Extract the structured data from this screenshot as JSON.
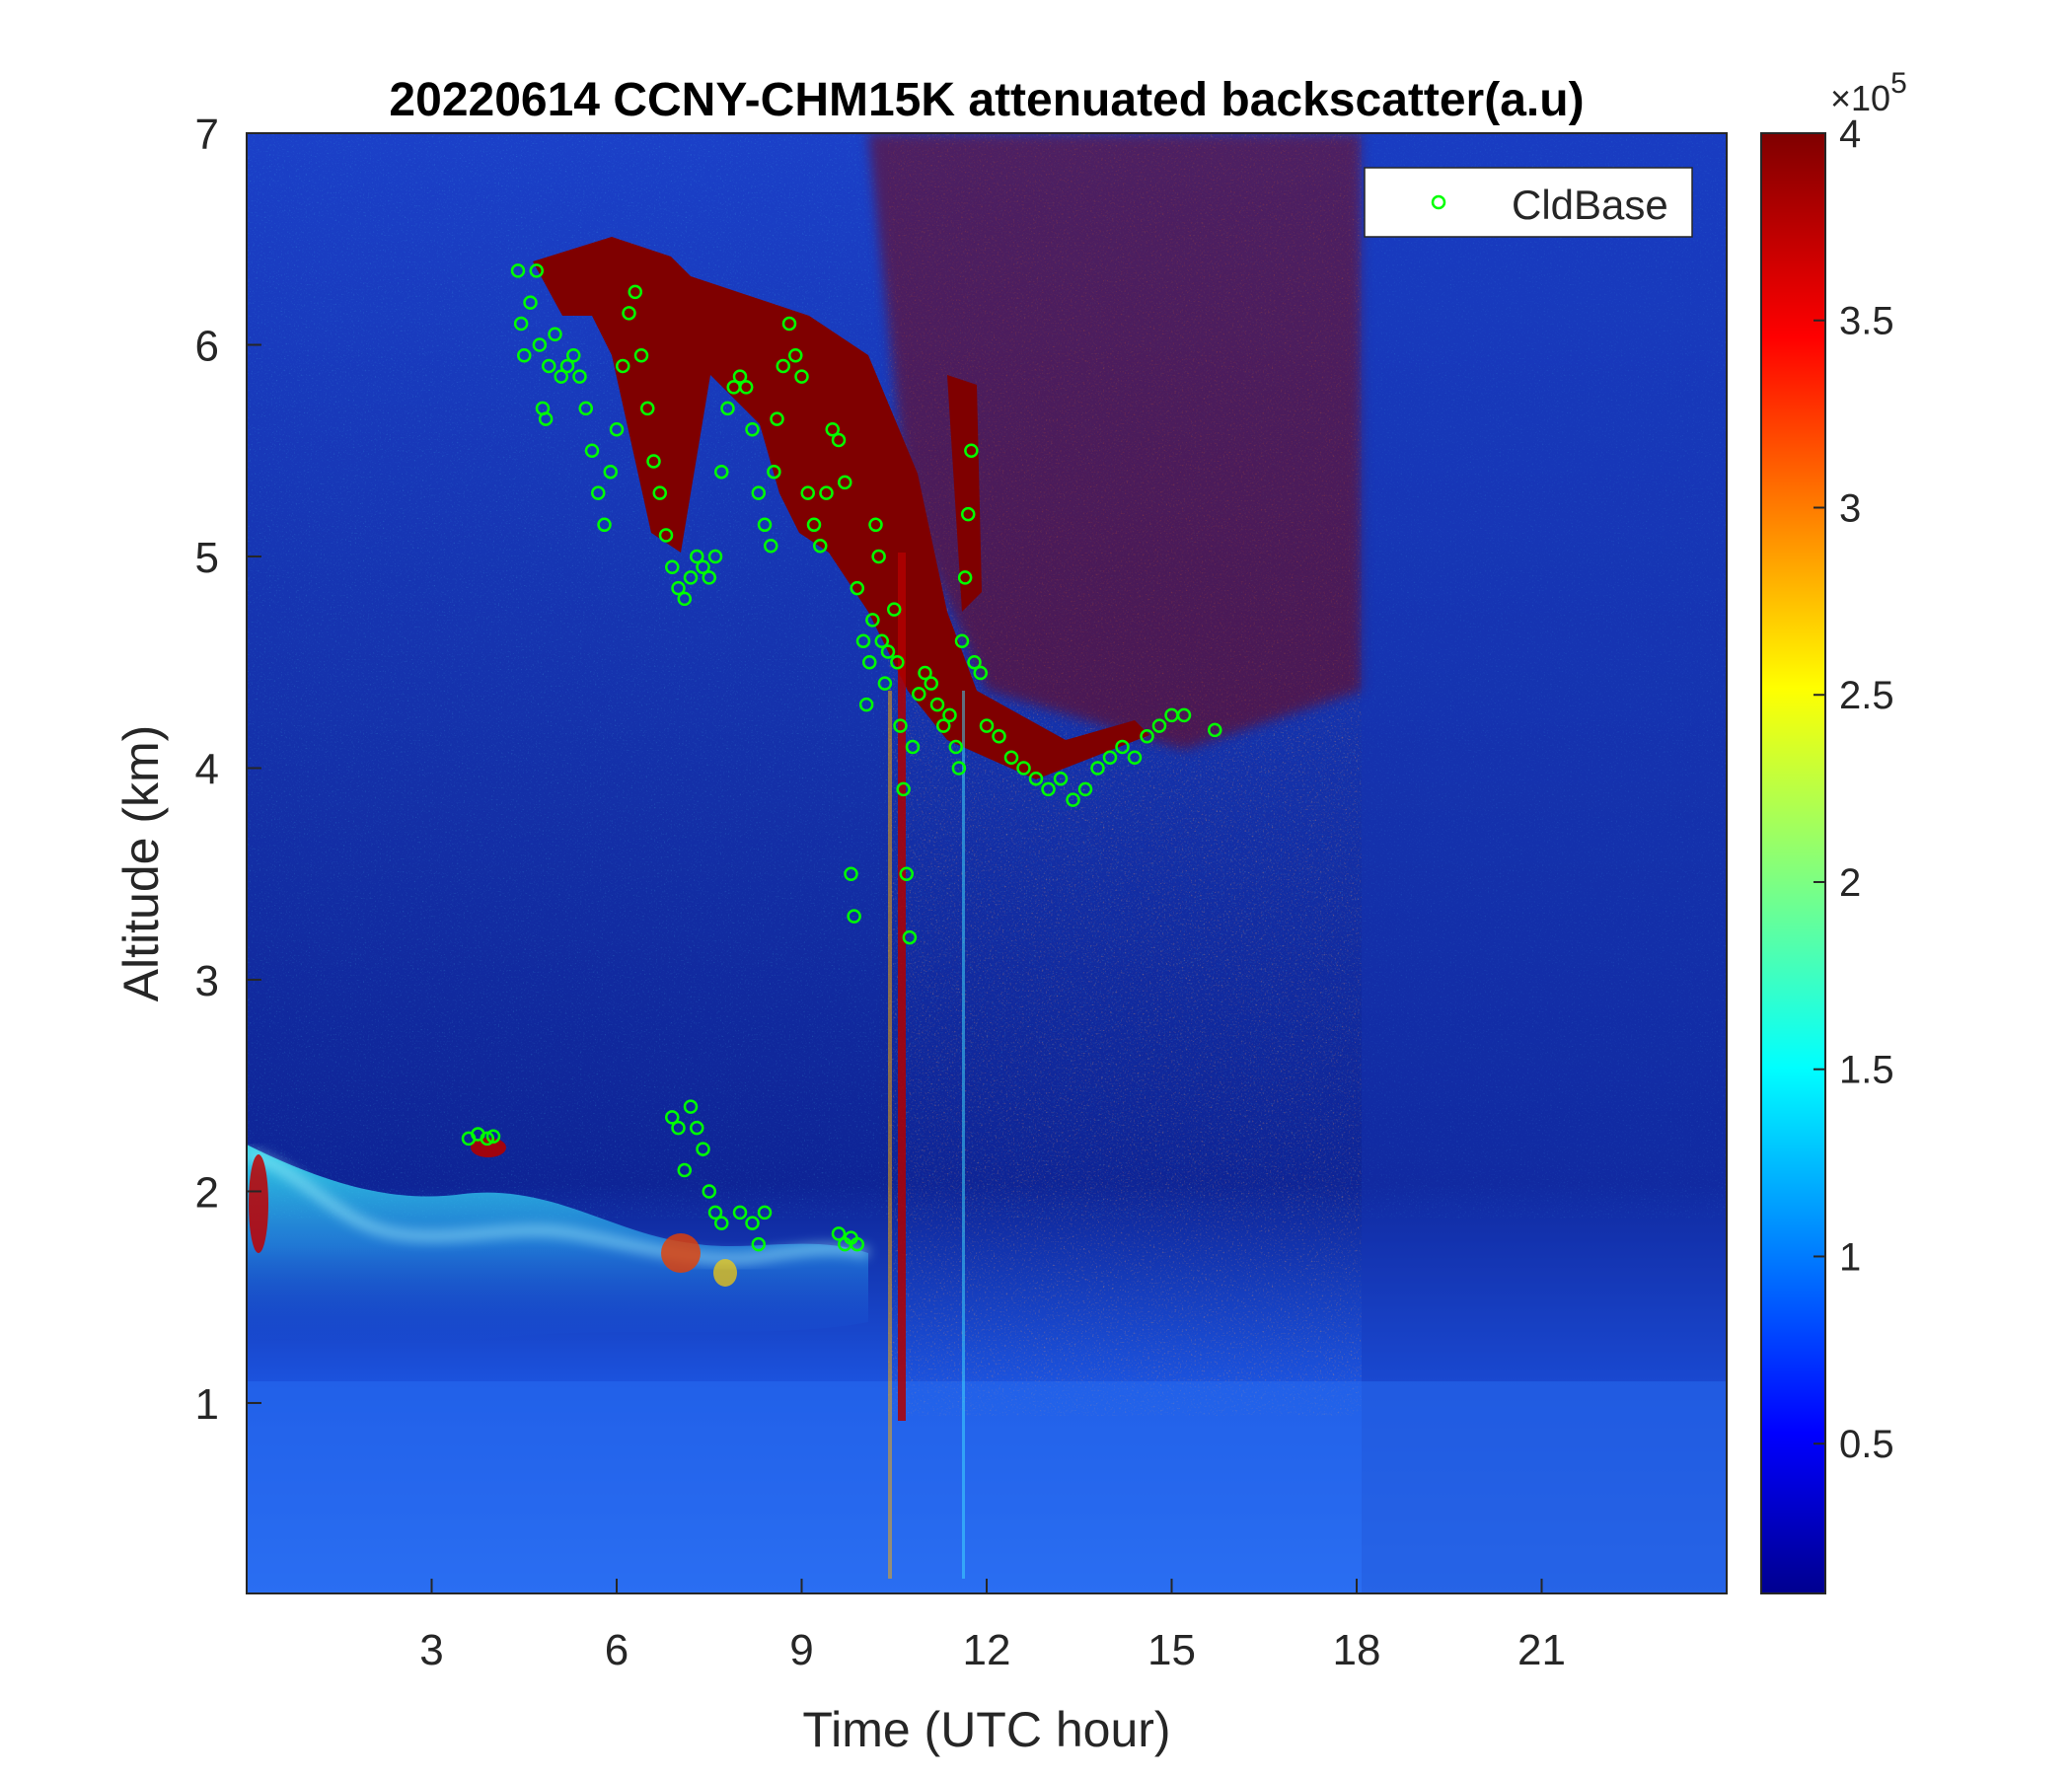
{
  "chart_data": {
    "type": "heatmap",
    "title": "20220614 CCNY-CHM15K attenuated backscatter(a.u)",
    "xlabel": "Time (UTC hour)",
    "ylabel": "Altitude (km)",
    "xlim": [
      0,
      24
    ],
    "ylim": [
      0.1,
      7
    ],
    "xticks": [
      "3",
      "6",
      "9",
      "12",
      "15",
      "18",
      "21"
    ],
    "yticks": [
      "1",
      "2",
      "3",
      "4",
      "5",
      "6",
      "7"
    ],
    "colorbar": {
      "colormap": "jet",
      "range": [
        0.1,
        4
      ],
      "ticks": [
        "0.5",
        "1",
        "1.5",
        "2",
        "2.5",
        "3",
        "3.5",
        "4"
      ],
      "multiplier_base": "×10",
      "multiplier_exp": "5"
    },
    "legend": {
      "position": "top-right",
      "entries": [
        "CldBase"
      ]
    },
    "series": [
      {
        "name": "CldBase",
        "marker": "circle",
        "color": "#00ff00",
        "points": [
          [
            4.4,
            6.35
          ],
          [
            4.45,
            6.1
          ],
          [
            4.5,
            5.95
          ],
          [
            4.6,
            6.2
          ],
          [
            4.7,
            6.35
          ],
          [
            4.75,
            6.0
          ],
          [
            4.8,
            5.7
          ],
          [
            4.85,
            5.65
          ],
          [
            4.9,
            5.9
          ],
          [
            5.0,
            6.05
          ],
          [
            5.1,
            5.85
          ],
          [
            5.2,
            5.9
          ],
          [
            5.3,
            5.95
          ],
          [
            5.4,
            5.85
          ],
          [
            5.5,
            5.7
          ],
          [
            5.6,
            5.5
          ],
          [
            5.7,
            5.3
          ],
          [
            5.8,
            5.15
          ],
          [
            5.9,
            5.4
          ],
          [
            6.0,
            5.6
          ],
          [
            6.1,
            5.9
          ],
          [
            6.2,
            6.15
          ],
          [
            6.3,
            6.25
          ],
          [
            6.4,
            5.95
          ],
          [
            6.5,
            5.7
          ],
          [
            6.6,
            5.45
          ],
          [
            6.7,
            5.3
          ],
          [
            6.8,
            5.1
          ],
          [
            6.9,
            4.95
          ],
          [
            7.0,
            4.85
          ],
          [
            7.1,
            4.8
          ],
          [
            7.2,
            4.9
          ],
          [
            7.3,
            5.0
          ],
          [
            7.4,
            4.95
          ],
          [
            7.5,
            4.9
          ],
          [
            7.6,
            5.0
          ],
          [
            7.7,
            5.4
          ],
          [
            7.8,
            5.7
          ],
          [
            7.9,
            5.8
          ],
          [
            8.0,
            5.85
          ],
          [
            8.1,
            5.8
          ],
          [
            8.2,
            5.6
          ],
          [
            8.3,
            5.3
          ],
          [
            8.4,
            5.15
          ],
          [
            8.5,
            5.05
          ],
          [
            8.55,
            5.4
          ],
          [
            8.6,
            5.65
          ],
          [
            8.7,
            5.9
          ],
          [
            8.8,
            6.1
          ],
          [
            8.9,
            5.95
          ],
          [
            9.0,
            5.85
          ],
          [
            9.1,
            5.3
          ],
          [
            9.2,
            5.15
          ],
          [
            9.3,
            5.05
          ],
          [
            9.4,
            5.3
          ],
          [
            9.5,
            5.6
          ],
          [
            9.6,
            5.55
          ],
          [
            9.7,
            5.35
          ],
          [
            9.8,
            3.5
          ],
          [
            9.85,
            3.3
          ],
          [
            9.9,
            4.85
          ],
          [
            10.0,
            4.6
          ],
          [
            10.05,
            4.3
          ],
          [
            10.1,
            4.5
          ],
          [
            10.15,
            4.7
          ],
          [
            10.2,
            5.15
          ],
          [
            10.25,
            5.0
          ],
          [
            10.3,
            4.6
          ],
          [
            10.35,
            4.4
          ],
          [
            10.4,
            4.55
          ],
          [
            10.5,
            4.75
          ],
          [
            10.55,
            4.5
          ],
          [
            10.6,
            4.2
          ],
          [
            10.65,
            3.9
          ],
          [
            10.7,
            3.5
          ],
          [
            10.75,
            3.2
          ],
          [
            10.8,
            4.1
          ],
          [
            10.9,
            4.35
          ],
          [
            11.0,
            4.45
          ],
          [
            11.1,
            4.4
          ],
          [
            11.2,
            4.3
          ],
          [
            11.3,
            4.2
          ],
          [
            11.4,
            4.25
          ],
          [
            11.5,
            4.1
          ],
          [
            11.55,
            4.0
          ],
          [
            11.6,
            4.6
          ],
          [
            11.65,
            4.9
          ],
          [
            11.7,
            5.2
          ],
          [
            11.75,
            5.5
          ],
          [
            11.8,
            4.5
          ],
          [
            11.9,
            4.45
          ],
          [
            12.0,
            4.2
          ],
          [
            12.2,
            4.15
          ],
          [
            12.4,
            4.05
          ],
          [
            12.6,
            4.0
          ],
          [
            12.8,
            3.95
          ],
          [
            13.0,
            3.9
          ],
          [
            13.2,
            3.95
          ],
          [
            13.4,
            3.85
          ],
          [
            13.6,
            3.9
          ],
          [
            13.8,
            4.0
          ],
          [
            14.0,
            4.05
          ],
          [
            14.2,
            4.1
          ],
          [
            14.4,
            4.05
          ],
          [
            14.6,
            4.15
          ],
          [
            14.8,
            4.2
          ],
          [
            15.0,
            4.25
          ],
          [
            15.2,
            4.25
          ],
          [
            15.7,
            4.18
          ],
          [
            3.6,
            2.25
          ],
          [
            3.75,
            2.27
          ],
          [
            3.9,
            2.25
          ],
          [
            4.0,
            2.26
          ],
          [
            6.9,
            2.35
          ],
          [
            7.0,
            2.3
          ],
          [
            7.1,
            2.1
          ],
          [
            7.2,
            2.4
          ],
          [
            7.3,
            2.3
          ],
          [
            7.4,
            2.2
          ],
          [
            7.5,
            2.0
          ],
          [
            7.6,
            1.9
          ],
          [
            7.7,
            1.85
          ],
          [
            8.0,
            1.9
          ],
          [
            8.2,
            1.85
          ],
          [
            8.3,
            1.75
          ],
          [
            8.4,
            1.9
          ],
          [
            9.6,
            1.8
          ],
          [
            9.7,
            1.75
          ],
          [
            9.8,
            1.78
          ],
          [
            9.9,
            1.75
          ]
        ]
      }
    ],
    "features": [
      {
        "region": "high cloud layer",
        "approx_altitude_km": [
          4.0,
          6.5
        ],
        "time_hours": [
          4.5,
          15.5
        ]
      },
      {
        "region": "boundary layer top",
        "approx_altitude_km": [
          1.5,
          2.3
        ],
        "time_hours": [
          0,
          10
        ]
      }
    ]
  }
}
